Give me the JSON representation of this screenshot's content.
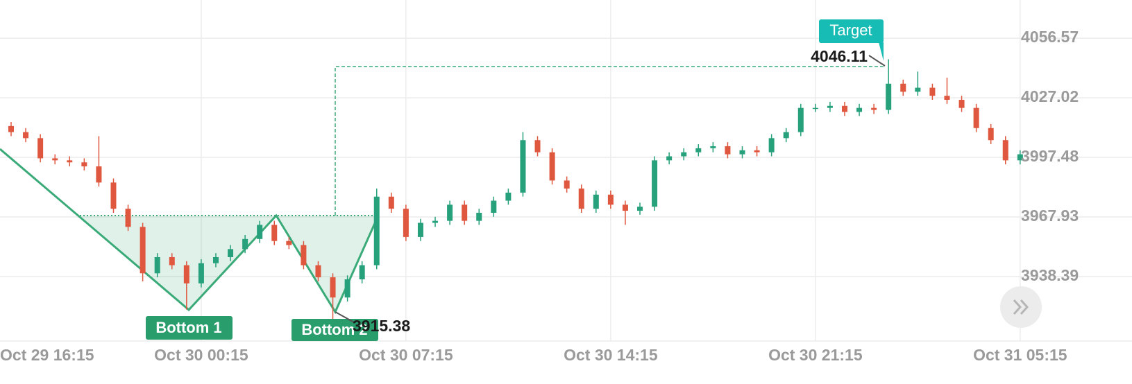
{
  "chart_data": {
    "type": "candlestick",
    "annotations": [
      "Bottom 1",
      "Bottom 2",
      "Target"
    ],
    "xticks": [
      {
        "value": -3,
        "label": "Oct 29 16:15"
      },
      {
        "value": 13,
        "label": "Oct 30 00:15"
      },
      {
        "value": 27,
        "label": "Oct 30 07:15"
      },
      {
        "value": 41,
        "label": "Oct 30 14:15"
      },
      {
        "value": 55,
        "label": "Oct 30 21:15"
      },
      {
        "value": 69,
        "label": "Oct 31 05:15"
      }
    ],
    "ylim": [
      3907.1,
      4075.5
    ],
    "yticks": [
      4056.57,
      4027.02,
      3997.48,
      3967.93,
      3938.39
    ],
    "grid": true,
    "up_color": "#26a17b",
    "down_color": "#e0573f",
    "open": [
      4013,
      4010,
      4007,
      3997,
      3996,
      3995,
      3993,
      3985,
      3972,
      3963,
      3940,
      3948,
      3944,
      3935,
      3945,
      3948,
      3952,
      3957,
      3964,
      3956,
      3954,
      3944,
      3938,
      3928,
      3937,
      3944,
      3978,
      3972,
      3958,
      3965,
      3966,
      3974,
      3966,
      3970,
      3976,
      3980,
      4006,
      4000,
      3986,
      3982,
      3972,
      3979,
      3974,
      3971,
      3973,
      3996,
      3998,
      4000,
      4002,
      4003,
      3999,
      4001,
      4000,
      4007,
      4010,
      4022,
      4022,
      4023,
      4020,
      4022,
      4021,
      4034,
      4030,
      4032,
      4028,
      4026,
      4022,
      4012,
      4006,
      3996
    ],
    "high": [
      4015,
      4012,
      4009,
      3999,
      3998,
      3997,
      4008,
      3987,
      3974,
      3965,
      3950,
      3950,
      3946,
      3947,
      3950,
      3954,
      3959,
      3966,
      3966,
      3958,
      3956,
      3946,
      3940,
      3939,
      3946,
      3982,
      3980,
      3974,
      3967,
      3968,
      3976,
      3976,
      3972,
      3978,
      3982,
      4010,
      4008,
      4002,
      3988,
      3984,
      3981,
      3981,
      3976,
      3975,
      3998,
      4000,
      4002,
      4004,
      4005,
      4005,
      4003,
      4003,
      4009,
      4012,
      4024,
      4024,
      4025,
      4025,
      4024,
      4024,
      4046.11,
      4036,
      4040,
      4034,
      4037,
      4028,
      4024,
      4014,
      4008,
      4001
    ],
    "low": [
      4008,
      4005,
      3995,
      3994,
      3993,
      3991,
      3983,
      3970,
      3961,
      3936,
      3938,
      3942,
      3922,
      3933,
      3943,
      3946,
      3950,
      3955,
      3954,
      3952,
      3942,
      3936,
      3915.38,
      3926,
      3935,
      3942,
      3970,
      3956,
      3956,
      3963,
      3964,
      3964,
      3964,
      3968,
      3974,
      3978,
      3998,
      3984,
      3980,
      3970,
      3970,
      3972,
      3964,
      3969,
      3971,
      3994,
      3996,
      3998,
      4000,
      3997,
      3997,
      3998,
      3998,
      4005,
      4008,
      4020,
      4020,
      4018,
      4018,
      4019,
      4019,
      4028,
      4028,
      4026,
      4024,
      4020,
      4010,
      4004,
      3994,
      3994
    ],
    "close": [
      4010,
      4007,
      3997,
      3996,
      3995,
      3993,
      3985,
      3972,
      3963,
      3940,
      3948,
      3944,
      3935,
      3945,
      3948,
      3952,
      3957,
      3964,
      3956,
      3954,
      3944,
      3938,
      3928,
      3937,
      3944,
      3978,
      3972,
      3958,
      3965,
      3966,
      3974,
      3966,
      3970,
      3976,
      3980,
      4006,
      4000,
      3986,
      3982,
      3972,
      3979,
      3974,
      3971,
      3973,
      3996,
      3998,
      4000,
      4002,
      4003,
      3999,
      4001,
      4000,
      4007,
      4010,
      4022,
      4022,
      4023,
      4020,
      4022,
      4021,
      4034,
      4030,
      4032,
      4028,
      4026,
      4022,
      4012,
      4006,
      3996,
      3999
    ]
  }
}
